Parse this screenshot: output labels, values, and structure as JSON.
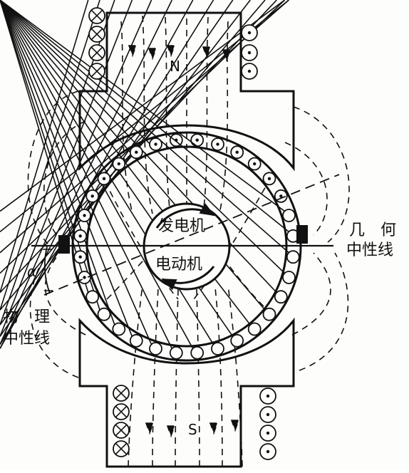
{
  "labels": {
    "north_pole": "N",
    "south_pole": "S",
    "generator": "发电机",
    "motor": "电动机",
    "geometric_neutral_1": "几　何",
    "geometric_neutral_2": "中性线",
    "physical_neutral_1": "物　理",
    "physical_neutral_2": "中性线",
    "angle": "α"
  },
  "colors": {
    "ink": "#111111",
    "paper": "#fdfdfb"
  }
}
